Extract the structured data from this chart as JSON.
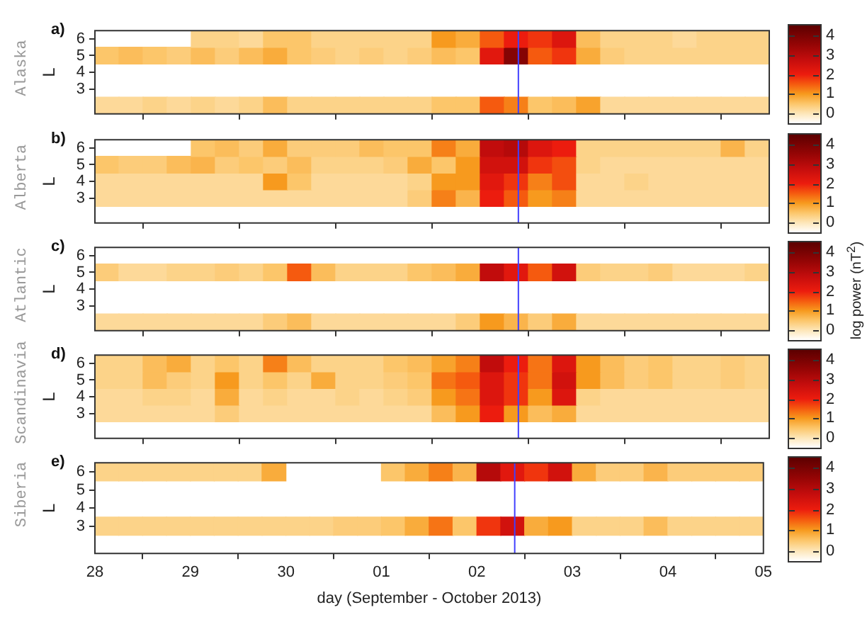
{
  "chart_data": [
    {
      "type": "heatmap",
      "title": "a)",
      "subtitle": "Alaska",
      "ylabel": "L",
      "tick_labels": "y",
      "x": [
        "2013-09-28T03:00",
        "2013-09-28T09:00",
        "2013-09-28T15:00",
        "2013-09-28T21:00",
        "2013-09-29T03:00",
        "2013-09-29T09:00",
        "2013-09-29T15:00",
        "2013-09-29T21:00",
        "2013-09-30T03:00",
        "2013-09-30T09:00",
        "2013-09-30T15:00",
        "2013-09-30T21:00",
        "2013-10-01T03:00",
        "2013-10-01T09:00",
        "2013-10-01T15:00",
        "2013-10-01T21:00",
        "2013-10-02T03:00",
        "2013-10-02T09:00",
        "2013-10-02T15:00",
        "2013-10-02T21:00",
        "2013-10-03T03:00",
        "2013-10-03T09:00",
        "2013-10-03T15:00",
        "2013-10-03T21:00",
        "2013-10-04T03:00",
        "2013-10-04T09:00",
        "2013-10-04T15:00",
        "2013-10-04T21:00"
      ],
      "y_categories": [
        "6",
        "5",
        "4",
        "3",
        null
      ],
      "cells": [
        [
          null,
          null,
          null,
          null,
          0.3,
          0.3,
          0.2,
          0.5,
          0.5,
          0.3,
          0.3,
          0.3,
          0.3,
          0.3,
          1.0,
          0.8,
          1.5,
          2.0,
          1.8,
          2.3,
          0.6,
          0.3,
          0.3,
          0.3,
          0.2,
          0.3,
          0.3,
          0.3
        ],
        [
          0.5,
          0.6,
          0.5,
          0.4,
          0.6,
          0.4,
          0.6,
          0.8,
          0.5,
          0.4,
          0.3,
          0.4,
          0.3,
          0.4,
          0.6,
          0.5,
          2.2,
          3.8,
          1.5,
          1.8,
          0.8,
          0.4,
          0.3,
          0.3,
          0.3,
          0.3,
          0.3,
          0.3
        ],
        [
          null,
          null,
          null,
          null,
          null,
          null,
          null,
          null,
          null,
          null,
          null,
          null,
          null,
          null,
          null,
          null,
          null,
          null,
          null,
          null,
          null,
          null,
          null,
          null,
          null,
          null,
          null,
          null
        ],
        [
          null,
          null,
          null,
          null,
          null,
          null,
          null,
          null,
          null,
          null,
          null,
          null,
          null,
          null,
          null,
          null,
          null,
          null,
          null,
          null,
          null,
          null,
          null,
          null,
          null,
          null,
          null,
          null
        ],
        [
          0.2,
          0.2,
          0.3,
          0.2,
          0.3,
          0.2,
          0.3,
          0.6,
          0.3,
          0.3,
          0.3,
          0.3,
          0.3,
          0.3,
          0.5,
          0.5,
          1.5,
          1.2,
          0.5,
          0.6,
          0.9,
          0.2,
          0.2,
          0.2,
          0.2,
          0.2,
          0.2,
          0.2
        ]
      ],
      "xlim": [
        "2013-09-28",
        "2013-10-05"
      ],
      "xticks": [
        {
          "value": "2013-09-28",
          "label": null
        },
        {
          "value": "2013-09-29",
          "label": null
        },
        {
          "value": "2013-09-30",
          "label": null
        },
        {
          "value": "2013-10-01",
          "label": null
        },
        {
          "value": "2013-10-02",
          "label": null
        },
        {
          "value": "2013-10-03",
          "label": null
        },
        {
          "value": "2013-10-04",
          "label": null
        },
        {
          "value": "2013-10-05",
          "label": null
        }
      ],
      "clim": [
        -0.5,
        4.5
      ],
      "cticks": [
        0,
        1,
        2,
        3,
        4
      ],
      "ref_lines": [
        {
          "axis": "x",
          "value": "2013-10-02T09:30",
          "color": "#4040ff"
        }
      ]
    },
    {
      "type": "heatmap",
      "title": "b)",
      "subtitle": "Alberta",
      "ylabel": "L",
      "tick_labels": "y",
      "x": [
        "2013-09-28T03:00",
        "2013-09-28T09:00",
        "2013-09-28T15:00",
        "2013-09-28T21:00",
        "2013-09-29T03:00",
        "2013-09-29T09:00",
        "2013-09-29T15:00",
        "2013-09-29T21:00",
        "2013-09-30T03:00",
        "2013-09-30T09:00",
        "2013-09-30T15:00",
        "2013-09-30T21:00",
        "2013-10-01T03:00",
        "2013-10-01T09:00",
        "2013-10-01T15:00",
        "2013-10-01T21:00",
        "2013-10-02T03:00",
        "2013-10-02T09:00",
        "2013-10-02T15:00",
        "2013-10-02T21:00",
        "2013-10-03T03:00",
        "2013-10-03T09:00",
        "2013-10-03T15:00",
        "2013-10-03T21:00",
        "2013-10-04T03:00",
        "2013-10-04T09:00",
        "2013-10-04T15:00",
        "2013-10-04T21:00"
      ],
      "y_categories": [
        "6",
        "5",
        "4",
        "3"
      ],
      "cells": [
        [
          null,
          null,
          null,
          null,
          0.5,
          0.6,
          0.4,
          0.8,
          0.4,
          0.4,
          0.4,
          0.6,
          0.5,
          0.5,
          1.2,
          0.8,
          2.8,
          3.0,
          2.3,
          2.0,
          0.3,
          0.3,
          0.3,
          0.3,
          0.3,
          0.3,
          0.7,
          0.3
        ],
        [
          0.5,
          0.4,
          0.4,
          0.6,
          0.7,
          0.4,
          0.5,
          0.4,
          0.6,
          0.3,
          0.3,
          0.3,
          0.4,
          0.8,
          0.5,
          1.0,
          2.5,
          2.5,
          1.8,
          1.6,
          0.3,
          0.2,
          0.2,
          0.2,
          0.2,
          0.2,
          0.2,
          0.2
        ],
        [
          0.2,
          0.2,
          0.2,
          0.2,
          0.2,
          0.2,
          0.2,
          1.0,
          0.5,
          0.2,
          0.2,
          0.2,
          0.2,
          0.3,
          1.0,
          1.0,
          2.2,
          1.8,
          1.2,
          1.6,
          0.2,
          0.2,
          0.3,
          0.2,
          0.2,
          0.2,
          0.2,
          0.2
        ],
        [
          0.2,
          0.2,
          0.2,
          0.2,
          0.2,
          0.2,
          0.2,
          0.2,
          0.2,
          0.2,
          0.2,
          0.2,
          0.2,
          0.4,
          1.2,
          0.7,
          2.0,
          1.5,
          1.0,
          1.2,
          0.2,
          0.2,
          0.2,
          0.2,
          0.2,
          0.2,
          0.2,
          0.2
        ]
      ],
      "xlim": [
        "2013-09-28",
        "2013-10-05"
      ],
      "xticks": [
        {
          "value": "2013-09-28",
          "label": null
        },
        {
          "value": "2013-09-29",
          "label": null
        },
        {
          "value": "2013-09-30",
          "label": null
        },
        {
          "value": "2013-10-01",
          "label": null
        },
        {
          "value": "2013-10-02",
          "label": null
        },
        {
          "value": "2013-10-03",
          "label": null
        },
        {
          "value": "2013-10-04",
          "label": null
        },
        {
          "value": "2013-10-05",
          "label": null
        }
      ],
      "clim": [
        -0.5,
        4.5
      ],
      "cticks": [
        0,
        1,
        2,
        3,
        4
      ],
      "ref_lines": [
        {
          "axis": "x",
          "value": "2013-10-02T09:30",
          "color": "#4040ff"
        }
      ]
    },
    {
      "type": "heatmap",
      "title": "c)",
      "subtitle": "Atlantic",
      "ylabel": "L",
      "clabel": "log power (nT$^{2}$)",
      "tick_labels": "y",
      "x": [
        "2013-09-28T03:00",
        "2013-09-28T09:00",
        "2013-09-28T15:00",
        "2013-09-28T21:00",
        "2013-09-29T03:00",
        "2013-09-29T09:00",
        "2013-09-29T15:00",
        "2013-09-29T21:00",
        "2013-09-30T03:00",
        "2013-09-30T09:00",
        "2013-09-30T15:00",
        "2013-09-30T21:00",
        "2013-10-01T03:00",
        "2013-10-01T09:00",
        "2013-10-01T15:00",
        "2013-10-01T21:00",
        "2013-10-02T03:00",
        "2013-10-02T09:00",
        "2013-10-02T15:00",
        "2013-10-02T21:00",
        "2013-10-03T03:00",
        "2013-10-03T09:00",
        "2013-10-03T15:00",
        "2013-10-03T21:00",
        "2013-10-04T03:00",
        "2013-10-04T09:00",
        "2013-10-04T15:00",
        "2013-10-04T21:00"
      ],
      "y_categories": [
        "6",
        "5",
        "4",
        "3",
        null
      ],
      "cells": [
        [
          null,
          null,
          null,
          null,
          null,
          null,
          null,
          null,
          null,
          null,
          null,
          null,
          null,
          null,
          null,
          null,
          null,
          null,
          null,
          null,
          null,
          null,
          null,
          null,
          null,
          null,
          null,
          null
        ],
        [
          0.4,
          0.2,
          0.2,
          0.3,
          0.3,
          0.4,
          0.3,
          0.5,
          1.5,
          0.6,
          0.3,
          0.3,
          0.3,
          0.5,
          0.6,
          0.8,
          2.8,
          2.2,
          1.5,
          2.5,
          0.4,
          0.3,
          0.3,
          0.4,
          0.2,
          0.2,
          0.2,
          0.3
        ],
        [
          null,
          null,
          null,
          null,
          null,
          null,
          null,
          null,
          null,
          null,
          null,
          null,
          null,
          null,
          null,
          null,
          null,
          null,
          null,
          null,
          null,
          null,
          null,
          null,
          null,
          null,
          null,
          null
        ],
        [
          null,
          null,
          null,
          null,
          null,
          null,
          null,
          null,
          null,
          null,
          null,
          null,
          null,
          null,
          null,
          null,
          null,
          null,
          null,
          null,
          null,
          null,
          null,
          null,
          null,
          null,
          null,
          null
        ],
        [
          0.2,
          0.2,
          0.2,
          0.2,
          0.2,
          0.2,
          0.2,
          0.4,
          0.6,
          0.2,
          0.2,
          0.2,
          0.2,
          0.2,
          0.2,
          0.4,
          1.0,
          0.7,
          0.4,
          0.8,
          0.2,
          0.2,
          0.2,
          0.2,
          0.2,
          0.2,
          0.2,
          0.2
        ]
      ],
      "xlim": [
        "2013-09-28",
        "2013-10-05"
      ],
      "xticks": [
        {
          "value": "2013-09-28",
          "label": null
        },
        {
          "value": "2013-09-29",
          "label": null
        },
        {
          "value": "2013-09-30",
          "label": null
        },
        {
          "value": "2013-10-01",
          "label": null
        },
        {
          "value": "2013-10-02",
          "label": null
        },
        {
          "value": "2013-10-03",
          "label": null
        },
        {
          "value": "2013-10-04",
          "label": null
        },
        {
          "value": "2013-10-05",
          "label": null
        }
      ],
      "clim": [
        -0.5,
        4.5
      ],
      "cticks": [
        0,
        1,
        2,
        3,
        4
      ],
      "ref_lines": [
        {
          "axis": "x",
          "value": "2013-10-02T09:30",
          "color": "#4040ff"
        }
      ]
    },
    {
      "type": "heatmap",
      "title": "d)",
      "subtitle": "Scandinavia",
      "ylabel": "L",
      "tick_labels": "y",
      "x": [
        "2013-09-28T03:00",
        "2013-09-28T09:00",
        "2013-09-28T15:00",
        "2013-09-28T21:00",
        "2013-09-29T03:00",
        "2013-09-29T09:00",
        "2013-09-29T15:00",
        "2013-09-29T21:00",
        "2013-09-30T03:00",
        "2013-09-30T09:00",
        "2013-09-30T15:00",
        "2013-09-30T21:00",
        "2013-10-01T03:00",
        "2013-10-01T09:00",
        "2013-10-01T15:00",
        "2013-10-01T21:00",
        "2013-10-02T03:00",
        "2013-10-02T09:00",
        "2013-10-02T15:00",
        "2013-10-02T21:00",
        "2013-10-03T03:00",
        "2013-10-03T09:00",
        "2013-10-03T15:00",
        "2013-10-03T21:00",
        "2013-10-04T03:00",
        "2013-10-04T09:00",
        "2013-10-04T15:00",
        "2013-10-04T21:00"
      ],
      "y_categories": [
        "6",
        "5",
        "4",
        "3"
      ],
      "cells": [
        [
          0.3,
          0.3,
          0.6,
          0.8,
          0.3,
          0.5,
          0.3,
          1.2,
          0.6,
          0.3,
          0.3,
          0.3,
          0.5,
          0.6,
          0.9,
          1.2,
          2.8,
          2.0,
          1.3,
          2.3,
          1.0,
          0.6,
          0.4,
          0.5,
          0.3,
          0.3,
          0.4,
          0.3
        ],
        [
          0.3,
          0.3,
          0.6,
          0.4,
          0.3,
          1.0,
          0.3,
          0.5,
          0.3,
          0.8,
          0.3,
          0.3,
          0.4,
          0.5,
          1.3,
          1.5,
          2.3,
          1.8,
          1.3,
          2.5,
          1.0,
          0.6,
          0.4,
          0.5,
          0.3,
          0.3,
          0.4,
          0.3
        ],
        [
          0.2,
          0.2,
          0.3,
          0.3,
          0.2,
          0.8,
          0.2,
          0.3,
          0.2,
          0.2,
          0.3,
          0.2,
          0.3,
          0.4,
          1.0,
          1.3,
          2.3,
          1.8,
          1.0,
          2.3,
          0.3,
          0.2,
          0.2,
          0.2,
          0.2,
          0.2,
          0.2,
          0.2
        ],
        [
          0.2,
          0.2,
          0.2,
          0.2,
          0.2,
          0.4,
          0.2,
          0.2,
          0.2,
          0.2,
          0.2,
          0.2,
          0.2,
          0.2,
          0.6,
          1.0,
          2.0,
          1.0,
          0.6,
          0.8,
          0.2,
          0.2,
          0.2,
          0.2,
          0.2,
          0.2,
          0.2,
          0.2
        ]
      ],
      "xlim": [
        "2013-09-28",
        "2013-10-05"
      ],
      "xticks": [
        {
          "value": "2013-09-28",
          "label": null
        },
        {
          "value": "2013-09-29",
          "label": null
        },
        {
          "value": "2013-09-30",
          "label": null
        },
        {
          "value": "2013-10-01",
          "label": null
        },
        {
          "value": "2013-10-02",
          "label": null
        },
        {
          "value": "2013-10-03",
          "label": null
        },
        {
          "value": "2013-10-04",
          "label": null
        },
        {
          "value": "2013-10-05",
          "label": null
        }
      ],
      "clim": [
        -0.5,
        4.5
      ],
      "cticks": [
        0,
        1,
        2,
        3,
        4
      ],
      "ref_lines": [
        {
          "axis": "x",
          "value": "2013-10-02T09:30",
          "color": "#4040ff"
        }
      ]
    },
    {
      "type": "heatmap",
      "title": "e)",
      "subtitle": "Siberia",
      "ylabel": "L",
      "xlabel": "day (September - October 2013)",
      "x": [
        "2013-09-28T03:00",
        "2013-09-28T09:00",
        "2013-09-28T15:00",
        "2013-09-28T21:00",
        "2013-09-29T03:00",
        "2013-09-29T09:00",
        "2013-09-29T15:00",
        "2013-09-29T21:00",
        "2013-09-30T03:00",
        "2013-09-30T09:00",
        "2013-09-30T15:00",
        "2013-09-30T21:00",
        "2013-10-01T03:00",
        "2013-10-01T09:00",
        "2013-10-01T15:00",
        "2013-10-01T21:00",
        "2013-10-02T03:00",
        "2013-10-02T09:00",
        "2013-10-02T15:00",
        "2013-10-02T21:00",
        "2013-10-03T03:00",
        "2013-10-03T09:00",
        "2013-10-03T15:00",
        "2013-10-03T21:00",
        "2013-10-04T03:00",
        "2013-10-04T09:00",
        "2013-10-04T15:00",
        "2013-10-04T21:00"
      ],
      "y_categories": [
        "6",
        "5",
        "4",
        "3"
      ],
      "cells": [
        [
          0.3,
          0.3,
          0.3,
          0.3,
          0.3,
          0.3,
          0.3,
          0.8,
          null,
          null,
          null,
          null,
          0.5,
          0.8,
          1.2,
          0.7,
          3.0,
          2.2,
          1.8,
          2.5,
          0.8,
          0.4,
          0.4,
          0.7,
          0.4,
          0.4,
          0.4,
          0.4
        ],
        [
          null,
          null,
          null,
          null,
          null,
          null,
          null,
          null,
          null,
          null,
          null,
          null,
          null,
          null,
          null,
          null,
          null,
          null,
          null,
          null,
          null,
          null,
          null,
          null,
          null,
          null,
          null,
          null
        ],
        [
          null,
          null,
          null,
          null,
          null,
          null,
          null,
          null,
          null,
          null,
          null,
          null,
          null,
          null,
          null,
          null,
          null,
          null,
          null,
          null,
          null,
          null,
          null,
          null,
          null,
          null,
          null,
          null
        ],
        [
          0.3,
          0.3,
          0.3,
          0.3,
          0.3,
          0.3,
          0.3,
          0.3,
          0.3,
          0.3,
          0.4,
          0.4,
          0.5,
          0.8,
          1.3,
          0.5,
          1.8,
          2.5,
          0.8,
          1.0,
          0.3,
          0.3,
          0.3,
          0.6,
          0.3,
          0.3,
          0.3,
          0.3
        ]
      ],
      "xlim": [
        "2013-09-28",
        "2013-10-05"
      ],
      "xticks": [
        {
          "value": "2013-09-28",
          "label": "28"
        },
        {
          "value": "2013-09-29",
          "label": "29"
        },
        {
          "value": "2013-09-30",
          "label": "30"
        },
        {
          "value": "2013-10-01",
          "label": "01"
        },
        {
          "value": "2013-10-02",
          "label": "02"
        },
        {
          "value": "2013-10-03",
          "label": "03"
        },
        {
          "value": "2013-10-04",
          "label": "04"
        },
        {
          "value": "2013-10-05",
          "label": "05"
        }
      ],
      "clim": [
        -0.5,
        4.5
      ],
      "cticks": [
        0,
        1,
        2,
        3,
        4
      ],
      "ref_lines": [
        {
          "axis": "x",
          "value": "2013-10-02T09:30",
          "color": "#4040ff"
        }
      ]
    }
  ]
}
